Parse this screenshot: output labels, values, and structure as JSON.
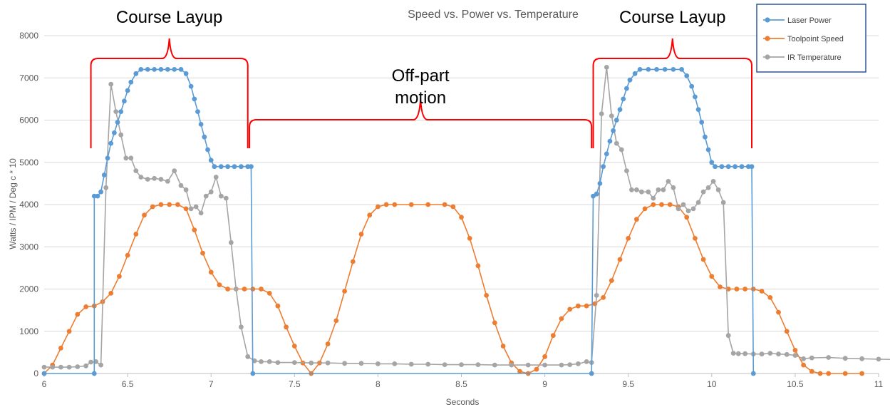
{
  "chart_data": {
    "type": "line",
    "title": "Speed vs. Power vs. Temperature",
    "xlabel": "Seconds",
    "ylabel": "Watts / IPM / Deg c * 10",
    "xlim": [
      6,
      11
    ],
    "ylim": [
      0,
      8000
    ],
    "x_ticks": [
      "6",
      "6.5",
      "7",
      "7.5",
      "8",
      "8.5",
      "9",
      "9.5",
      "10",
      "10.5",
      "11"
    ],
    "y_ticks": [
      "0",
      "1000",
      "2000",
      "3000",
      "4000",
      "5000",
      "6000",
      "7000",
      "8000"
    ],
    "grid": "horizontal",
    "legend_position": "top-right",
    "series": [
      {
        "name": "Laser Power",
        "color": "#5B9BD5",
        "points": [
          [
            6.0,
            0
          ],
          [
            6.3,
            0
          ],
          [
            6.3,
            4200
          ],
          [
            6.32,
            4200
          ],
          [
            6.34,
            4300
          ],
          [
            6.36,
            4700
          ],
          [
            6.38,
            5100
          ],
          [
            6.4,
            5450
          ],
          [
            6.42,
            5700
          ],
          [
            6.44,
            5950
          ],
          [
            6.46,
            6200
          ],
          [
            6.48,
            6450
          ],
          [
            6.5,
            6700
          ],
          [
            6.52,
            6900
          ],
          [
            6.55,
            7100
          ],
          [
            6.58,
            7200
          ],
          [
            6.62,
            7200
          ],
          [
            6.66,
            7200
          ],
          [
            6.7,
            7200
          ],
          [
            6.74,
            7200
          ],
          [
            6.78,
            7200
          ],
          [
            6.82,
            7200
          ],
          [
            6.85,
            7100
          ],
          [
            6.88,
            6800
          ],
          [
            6.9,
            6500
          ],
          [
            6.92,
            6200
          ],
          [
            6.94,
            5900
          ],
          [
            6.96,
            5600
          ],
          [
            6.98,
            5300
          ],
          [
            7.0,
            5050
          ],
          [
            7.02,
            4900
          ],
          [
            7.06,
            4900
          ],
          [
            7.1,
            4900
          ],
          [
            7.14,
            4900
          ],
          [
            7.18,
            4900
          ],
          [
            7.22,
            4900
          ],
          [
            7.24,
            4900
          ],
          [
            7.25,
            0
          ],
          [
            9.28,
            0
          ],
          [
            9.29,
            4200
          ],
          [
            9.31,
            4250
          ],
          [
            9.33,
            4500
          ],
          [
            9.35,
            4900
          ],
          [
            9.37,
            5200
          ],
          [
            9.39,
            5500
          ],
          [
            9.41,
            5750
          ],
          [
            9.43,
            6000
          ],
          [
            9.45,
            6250
          ],
          [
            9.47,
            6500
          ],
          [
            9.49,
            6750
          ],
          [
            9.51,
            6950
          ],
          [
            9.54,
            7100
          ],
          [
            9.57,
            7200
          ],
          [
            9.62,
            7200
          ],
          [
            9.67,
            7200
          ],
          [
            9.72,
            7200
          ],
          [
            9.77,
            7200
          ],
          [
            9.82,
            7200
          ],
          [
            9.85,
            7050
          ],
          [
            9.88,
            6800
          ],
          [
            9.9,
            6550
          ],
          [
            9.92,
            6250
          ],
          [
            9.94,
            5950
          ],
          [
            9.96,
            5600
          ],
          [
            9.98,
            5300
          ],
          [
            10.0,
            5000
          ],
          [
            10.02,
            4900
          ],
          [
            10.06,
            4900
          ],
          [
            10.1,
            4900
          ],
          [
            10.14,
            4900
          ],
          [
            10.18,
            4900
          ],
          [
            10.22,
            4900
          ],
          [
            10.24,
            4900
          ],
          [
            10.25,
            0
          ]
        ]
      },
      {
        "name": "Toolpoint Speed",
        "color": "#ED7D31",
        "points": [
          [
            6.0,
            0
          ],
          [
            6.05,
            200
          ],
          [
            6.1,
            600
          ],
          [
            6.15,
            1000
          ],
          [
            6.2,
            1400
          ],
          [
            6.25,
            1580
          ],
          [
            6.3,
            1600
          ],
          [
            6.35,
            1700
          ],
          [
            6.4,
            1900
          ],
          [
            6.45,
            2300
          ],
          [
            6.5,
            2800
          ],
          [
            6.55,
            3300
          ],
          [
            6.6,
            3750
          ],
          [
            6.65,
            3950
          ],
          [
            6.7,
            4000
          ],
          [
            6.75,
            4000
          ],
          [
            6.8,
            4000
          ],
          [
            6.85,
            3900
          ],
          [
            6.9,
            3400
          ],
          [
            6.95,
            2850
          ],
          [
            7.0,
            2400
          ],
          [
            7.05,
            2100
          ],
          [
            7.1,
            2000
          ],
          [
            7.15,
            2000
          ],
          [
            7.2,
            2000
          ],
          [
            7.25,
            2000
          ],
          [
            7.3,
            2000
          ],
          [
            7.35,
            1900
          ],
          [
            7.4,
            1600
          ],
          [
            7.45,
            1100
          ],
          [
            7.5,
            650
          ],
          [
            7.55,
            250
          ],
          [
            7.6,
            0
          ],
          [
            7.65,
            250
          ],
          [
            7.7,
            700
          ],
          [
            7.75,
            1250
          ],
          [
            7.8,
            1950
          ],
          [
            7.85,
            2650
          ],
          [
            7.9,
            3300
          ],
          [
            7.95,
            3750
          ],
          [
            8.0,
            3950
          ],
          [
            8.05,
            4000
          ],
          [
            8.1,
            4000
          ],
          [
            8.2,
            4000
          ],
          [
            8.3,
            4000
          ],
          [
            8.4,
            4000
          ],
          [
            8.45,
            3950
          ],
          [
            8.5,
            3700
          ],
          [
            8.55,
            3200
          ],
          [
            8.6,
            2550
          ],
          [
            8.65,
            1850
          ],
          [
            8.7,
            1200
          ],
          [
            8.75,
            650
          ],
          [
            8.8,
            250
          ],
          [
            8.85,
            50
          ],
          [
            8.9,
            0
          ],
          [
            8.95,
            100
          ],
          [
            9.0,
            400
          ],
          [
            9.05,
            900
          ],
          [
            9.1,
            1300
          ],
          [
            9.15,
            1520
          ],
          [
            9.2,
            1600
          ],
          [
            9.25,
            1600
          ],
          [
            9.3,
            1650
          ],
          [
            9.35,
            1800
          ],
          [
            9.4,
            2200
          ],
          [
            9.45,
            2700
          ],
          [
            9.5,
            3200
          ],
          [
            9.55,
            3650
          ],
          [
            9.6,
            3900
          ],
          [
            9.65,
            4000
          ],
          [
            9.7,
            4000
          ],
          [
            9.75,
            4000
          ],
          [
            9.8,
            3950
          ],
          [
            9.85,
            3700
          ],
          [
            9.9,
            3200
          ],
          [
            9.95,
            2700
          ],
          [
            10.0,
            2300
          ],
          [
            10.05,
            2050
          ],
          [
            10.1,
            2000
          ],
          [
            10.15,
            2000
          ],
          [
            10.2,
            2000
          ],
          [
            10.25,
            2000
          ],
          [
            10.3,
            1950
          ],
          [
            10.35,
            1800
          ],
          [
            10.4,
            1450
          ],
          [
            10.45,
            1000
          ],
          [
            10.5,
            550
          ],
          [
            10.55,
            200
          ],
          [
            10.6,
            50
          ],
          [
            10.65,
            0
          ],
          [
            10.7,
            0
          ],
          [
            10.8,
            0
          ],
          [
            10.9,
            0
          ]
        ]
      },
      {
        "name": "IR Temperature",
        "color": "#A5A5A5",
        "points": [
          [
            6.0,
            150
          ],
          [
            6.05,
            150
          ],
          [
            6.1,
            150
          ],
          [
            6.15,
            150
          ],
          [
            6.2,
            160
          ],
          [
            6.25,
            180
          ],
          [
            6.28,
            270
          ],
          [
            6.31,
            280
          ],
          [
            6.34,
            200
          ],
          [
            6.37,
            4400
          ],
          [
            6.4,
            6850
          ],
          [
            6.43,
            6200
          ],
          [
            6.46,
            5650
          ],
          [
            6.49,
            5100
          ],
          [
            6.52,
            5100
          ],
          [
            6.55,
            4800
          ],
          [
            6.58,
            4650
          ],
          [
            6.62,
            4600
          ],
          [
            6.66,
            4620
          ],
          [
            6.7,
            4600
          ],
          [
            6.74,
            4550
          ],
          [
            6.78,
            4800
          ],
          [
            6.82,
            4450
          ],
          [
            6.85,
            4350
          ],
          [
            6.88,
            3900
          ],
          [
            6.91,
            3950
          ],
          [
            6.94,
            3800
          ],
          [
            6.97,
            4200
          ],
          [
            7.0,
            4300
          ],
          [
            7.03,
            4650
          ],
          [
            7.06,
            4200
          ],
          [
            7.09,
            4150
          ],
          [
            7.12,
            3100
          ],
          [
            7.15,
            2000
          ],
          [
            7.18,
            1100
          ],
          [
            7.22,
            400
          ],
          [
            7.26,
            300
          ],
          [
            7.3,
            280
          ],
          [
            7.35,
            280
          ],
          [
            7.4,
            260
          ],
          [
            7.5,
            260
          ],
          [
            7.6,
            250
          ],
          [
            7.7,
            250
          ],
          [
            7.8,
            240
          ],
          [
            7.9,
            240
          ],
          [
            8.0,
            230
          ],
          [
            8.1,
            230
          ],
          [
            8.2,
            220
          ],
          [
            8.3,
            220
          ],
          [
            8.4,
            210
          ],
          [
            8.5,
            210
          ],
          [
            8.6,
            210
          ],
          [
            8.7,
            200
          ],
          [
            8.8,
            200
          ],
          [
            8.9,
            200
          ],
          [
            9.0,
            200
          ],
          [
            9.1,
            200
          ],
          [
            9.15,
            210
          ],
          [
            9.2,
            230
          ],
          [
            9.25,
            280
          ],
          [
            9.28,
            260
          ],
          [
            9.31,
            1850
          ],
          [
            9.34,
            6150
          ],
          [
            9.37,
            7250
          ],
          [
            9.4,
            6100
          ],
          [
            9.43,
            5450
          ],
          [
            9.46,
            5300
          ],
          [
            9.49,
            4800
          ],
          [
            9.52,
            4350
          ],
          [
            9.55,
            4350
          ],
          [
            9.58,
            4300
          ],
          [
            9.62,
            4300
          ],
          [
            9.65,
            4150
          ],
          [
            9.68,
            4350
          ],
          [
            9.71,
            4350
          ],
          [
            9.74,
            4550
          ],
          [
            9.77,
            4400
          ],
          [
            9.8,
            3900
          ],
          [
            9.83,
            4000
          ],
          [
            9.86,
            3850
          ],
          [
            9.89,
            3900
          ],
          [
            9.92,
            4050
          ],
          [
            9.95,
            4300
          ],
          [
            9.98,
            4400
          ],
          [
            10.01,
            4550
          ],
          [
            10.04,
            4350
          ],
          [
            10.07,
            4050
          ],
          [
            10.1,
            900
          ],
          [
            10.13,
            480
          ],
          [
            10.16,
            470
          ],
          [
            10.2,
            470
          ],
          [
            10.25,
            460
          ],
          [
            10.3,
            460
          ],
          [
            10.35,
            480
          ],
          [
            10.4,
            460
          ],
          [
            10.45,
            450
          ],
          [
            10.5,
            430
          ],
          [
            10.55,
            350
          ],
          [
            10.6,
            370
          ],
          [
            10.7,
            380
          ],
          [
            10.8,
            360
          ],
          [
            10.9,
            350
          ],
          [
            11.0,
            340
          ],
          [
            11.1,
            330
          ]
        ]
      }
    ],
    "annotations": [
      {
        "text": "Course Layup",
        "x_range": [
          6.28,
          7.22
        ]
      },
      {
        "text": "Off-part motion",
        "lines": [
          "Off-part",
          "motion"
        ],
        "x_range": [
          7.23,
          9.28
        ]
      },
      {
        "text": "Course Layup",
        "x_range": [
          9.29,
          10.24
        ]
      }
    ]
  }
}
